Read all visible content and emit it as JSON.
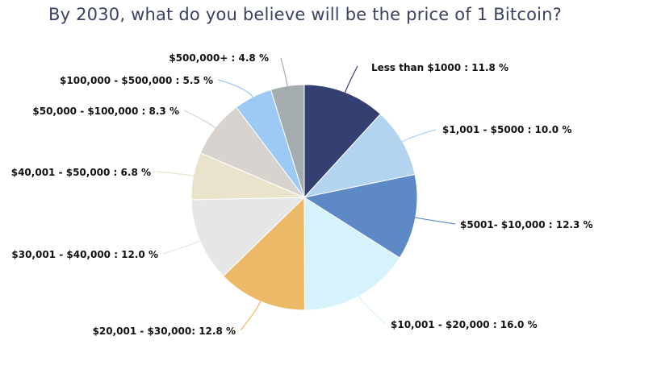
{
  "chart_data": {
    "type": "pie",
    "title": "By 2030, what do you believe will be the price of 1 Bitcoin?",
    "slices": [
      {
        "label": "Less than $1000",
        "value": 11.8,
        "display": "Less than $1000 : 11.8 %",
        "color": "#343f72"
      },
      {
        "label": "$1,001 - $5000",
        "value": 10.0,
        "display": "$1,001 - $5000 : 10.0 %",
        "color": "#b3d4f1"
      },
      {
        "label": "$5001- $10,000",
        "value": 12.3,
        "display": "$5001- $10,000 : 12.3 %",
        "color": "#5d8ac7"
      },
      {
        "label": "$10,001 - $20,000",
        "value": 16.0,
        "display": "$10,001 - $20,000 : 16.0 %",
        "color": "#d6f3fb"
      },
      {
        "label": "$20,001 - $30,000",
        "value": 12.8,
        "display": "$20,001 - $30,000: 12.8 %",
        "color": "#ebb968"
      },
      {
        "label": "$30,001 - $40,000",
        "value": 12.0,
        "display": "$30,001 - $40,000 : 12.0 %",
        "color": "#e6e6e6"
      },
      {
        "label": "$40,001 - $50,000",
        "value": 6.8,
        "display": "$40,001 - $50,000 : 6.8 %",
        "color": "#eae3cc"
      },
      {
        "label": "$50,000 - $100,000",
        "value": 8.3,
        "display": "$50,000 - $100,000 : 8.3 %",
        "color": "#d8d3ce"
      },
      {
        "label": "$100,000 - $500,000",
        "value": 5.5,
        "display": "$100,000 - $500,000 : 5.5 %",
        "color": "#9ccaf4"
      },
      {
        "label": "$500,000+",
        "value": 4.8,
        "display": "$500,000+ : 4.8 %",
        "color": "#a4acaf"
      }
    ]
  }
}
